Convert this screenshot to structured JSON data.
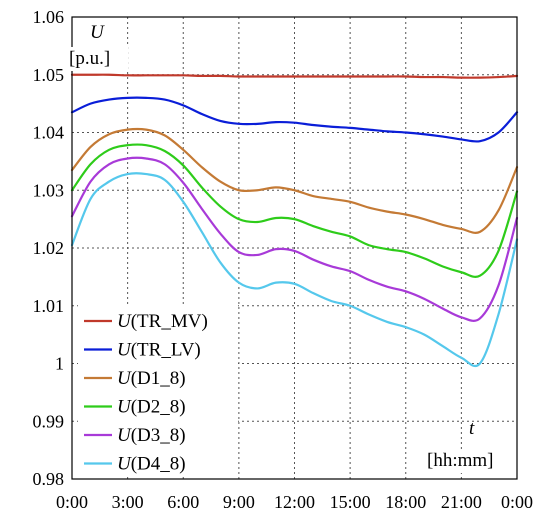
{
  "chart_data": {
    "type": "line",
    "ylabel": {
      "symbol": "U",
      "unit": "[p.u.]"
    },
    "xlabel": {
      "symbol": "t",
      "unit": "[hh:mm]"
    },
    "xlim": [
      0,
      24
    ],
    "ylim": [
      0.98,
      1.06
    ],
    "x_ticks": [
      0,
      3,
      6,
      9,
      12,
      15,
      18,
      21,
      24
    ],
    "x_tick_labels": [
      "0:00",
      "3:00",
      "6:00",
      "9:00",
      "12:00",
      "15:00",
      "18:00",
      "21:00",
      "0:00"
    ],
    "y_ticks": [
      0.98,
      0.99,
      1.0,
      1.01,
      1.02,
      1.03,
      1.04,
      1.05,
      1.06
    ],
    "y_tick_labels": [
      "0.98",
      "0.99",
      "1",
      "1.01",
      "1.02",
      "1.03",
      "1.04",
      "1.05",
      "1.06"
    ],
    "grid": true,
    "legend_position": "bottom-left",
    "x": [
      0,
      1,
      2,
      3,
      4,
      5,
      6,
      7,
      8,
      9,
      10,
      11,
      12,
      13,
      14,
      15,
      16,
      17,
      18,
      19,
      20,
      21,
      22,
      23,
      24
    ],
    "series": [
      {
        "name": "TR_MV",
        "color": "#c0392b",
        "values": [
          1.05,
          1.05,
          1.05,
          1.0499,
          1.0499,
          1.0499,
          1.0499,
          1.0498,
          1.0498,
          1.0497,
          1.0497,
          1.0497,
          1.0497,
          1.0497,
          1.0497,
          1.0497,
          1.0497,
          1.0497,
          1.0497,
          1.0496,
          1.0496,
          1.0495,
          1.0495,
          1.0496,
          1.0498
        ]
      },
      {
        "name": "TR_LV",
        "color": "#0a1ed8",
        "values": [
          1.0435,
          1.045,
          1.0457,
          1.046,
          1.046,
          1.0457,
          1.0447,
          1.0432,
          1.042,
          1.0415,
          1.0415,
          1.0418,
          1.0417,
          1.0413,
          1.041,
          1.0408,
          1.0405,
          1.0402,
          1.04,
          1.0397,
          1.0393,
          1.0388,
          1.0385,
          1.04,
          1.0435
        ]
      },
      {
        "name": "D1_8",
        "color": "#c47a35",
        "values": [
          1.0335,
          1.0375,
          1.0397,
          1.0405,
          1.0405,
          1.0395,
          1.037,
          1.034,
          1.0315,
          1.03,
          1.03,
          1.0305,
          1.03,
          1.029,
          1.0285,
          1.028,
          1.027,
          1.0263,
          1.0258,
          1.025,
          1.024,
          1.0233,
          1.0228,
          1.0265,
          1.034
        ]
      },
      {
        "name": "D2_8",
        "color": "#2ecc1a",
        "values": [
          1.03,
          1.0345,
          1.037,
          1.0378,
          1.0378,
          1.0368,
          1.0343,
          1.0305,
          1.0272,
          1.025,
          1.0245,
          1.0252,
          1.025,
          1.0238,
          1.0228,
          1.022,
          1.0205,
          1.0198,
          1.0193,
          1.0182,
          1.0168,
          1.0158,
          1.0152,
          1.0195,
          1.0298
        ]
      },
      {
        "name": "D3_8",
        "color": "#a83ad8",
        "values": [
          1.0255,
          1.0315,
          1.0345,
          1.0355,
          1.0355,
          1.0345,
          1.0313,
          1.0268,
          1.0225,
          1.0193,
          1.0188,
          1.0198,
          1.0195,
          1.018,
          1.0168,
          1.016,
          1.0145,
          1.0133,
          1.0125,
          1.0112,
          1.0095,
          1.008,
          1.0078,
          1.0135,
          1.0252
        ]
      },
      {
        "name": "D4_8",
        "color": "#55c8ec",
        "values": [
          1.0205,
          1.0285,
          1.0315,
          1.0328,
          1.0328,
          1.0318,
          1.028,
          1.0228,
          1.0175,
          1.014,
          1.013,
          1.014,
          1.0138,
          1.0122,
          1.0108,
          1.01,
          1.0085,
          1.0072,
          1.0063,
          1.005,
          1.003,
          1.001,
          1.0,
          1.0085,
          1.0215
        ]
      }
    ]
  }
}
